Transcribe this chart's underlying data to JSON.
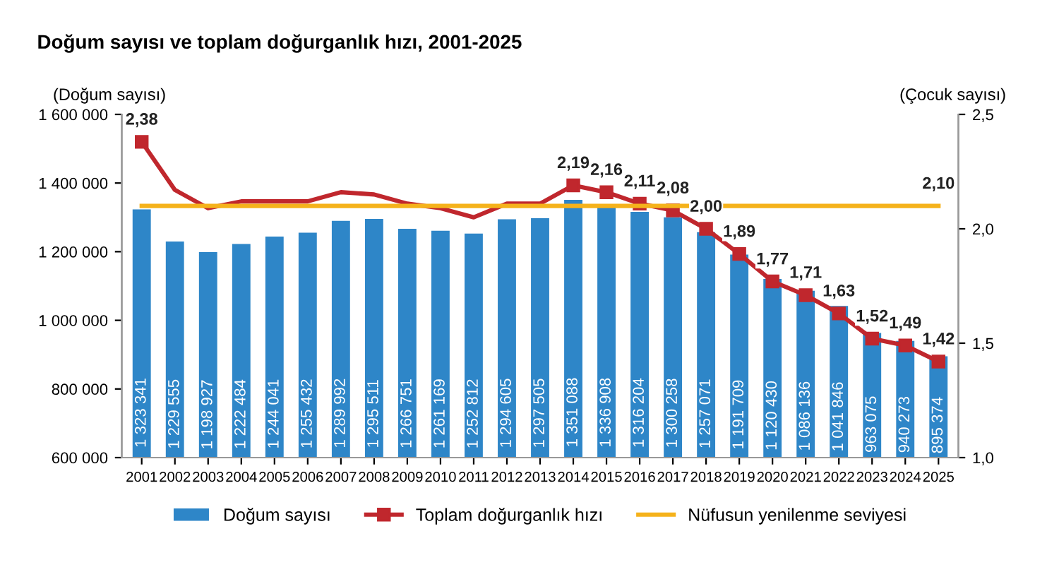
{
  "chart_data": {
    "type": "bar",
    "title": "Doğum sayısı ve toplam doğurganlık hızı, 2001-2025",
    "ylabel": "(Doğum sayısı)",
    "y2label": "(Çocuk sayısı)",
    "categories": [
      "2001",
      "2002",
      "2003",
      "2004",
      "2005",
      "2006",
      "2007",
      "2008",
      "2009",
      "2010",
      "2011",
      "2012",
      "2013",
      "2014",
      "2015",
      "2016",
      "2017",
      "2018",
      "2019",
      "2020",
      "2021",
      "2022",
      "2023",
      "2024",
      "2025"
    ],
    "series": [
      {
        "name": "Doğum sayısı",
        "color": "#2e86c8",
        "values": [
          1323341,
          1229555,
          1198927,
          1222484,
          1244041,
          1255432,
          1289992,
          1295511,
          1266751,
          1261169,
          1252812,
          1294605,
          1297505,
          1351088,
          1336908,
          1316204,
          1300258,
          1257071,
          1191709,
          1120430,
          1086136,
          1041846,
          963075,
          940273,
          895374
        ],
        "value_labels": [
          "1 323 341",
          "1 229 555",
          "1 198 927",
          "1 222 484",
          "1 244 041",
          "1 255 432",
          "1 289 992",
          "1 295 511",
          "1 266 751",
          "1 261 169",
          "1 252 812",
          "1 294 605",
          "1 297 505",
          "1 351 088",
          "1 336 908",
          "1 316 204",
          "1 300 258",
          "1 257 071",
          "1 191 709",
          "1 120 430",
          "1 086 136",
          "1 041 846",
          "963 075",
          "940 273",
          "895 374"
        ]
      },
      {
        "name": "Toplam doğurganlık hızı",
        "type": "line",
        "axis": "y2",
        "color": "#c0272d",
        "marker": "square",
        "values": [
          2.38,
          2.17,
          2.09,
          2.12,
          2.12,
          2.12,
          2.16,
          2.15,
          2.11,
          2.09,
          2.05,
          2.11,
          2.11,
          2.19,
          2.16,
          2.11,
          2.08,
          2.0,
          1.89,
          1.77,
          1.71,
          1.63,
          1.52,
          1.49,
          1.42
        ],
        "value_labels": [
          "2,38",
          null,
          null,
          null,
          null,
          null,
          null,
          null,
          null,
          null,
          null,
          null,
          null,
          "2,19",
          "2,16",
          "2,11",
          "2,08",
          "2,00",
          "1,89",
          "1,77",
          "1,71",
          "1,63",
          "1,52",
          "1,49",
          "1,42"
        ]
      },
      {
        "name": "Nüfusun yenilenme seviyesi",
        "type": "line",
        "axis": "y2",
        "color": "#f5b21b",
        "values": [
          2.1,
          2.1,
          2.1,
          2.1,
          2.1,
          2.1,
          2.1,
          2.1,
          2.1,
          2.1,
          2.1,
          2.1,
          2.1,
          2.1,
          2.1,
          2.1,
          2.1,
          2.1,
          2.1,
          2.1,
          2.1,
          2.1,
          2.1,
          2.1,
          2.1
        ],
        "value_labels": [
          null,
          null,
          null,
          null,
          null,
          null,
          null,
          null,
          null,
          null,
          null,
          null,
          null,
          null,
          null,
          null,
          null,
          null,
          null,
          null,
          null,
          null,
          null,
          null,
          "2,10"
        ]
      }
    ],
    "ylim": [
      600000,
      1600000
    ],
    "yticks": [
      {
        "value": 600000,
        "label": "600 000"
      },
      {
        "value": 800000,
        "label": "800 000"
      },
      {
        "value": 1000000,
        "label": "1 000 000"
      },
      {
        "value": 1200000,
        "label": "1 200 000"
      },
      {
        "value": 1400000,
        "label": "1 400 000"
      },
      {
        "value": 1600000,
        "label": "1 600 000"
      }
    ],
    "y2lim": [
      1.0,
      2.5
    ],
    "y2ticks": [
      {
        "value": 1.0,
        "label": "1,0"
      },
      {
        "value": 1.5,
        "label": "1,5"
      },
      {
        "value": 2.0,
        "label": "2,0"
      },
      {
        "value": 2.5,
        "label": "2,5"
      }
    ],
    "grid": false,
    "legend": "bottom"
  }
}
